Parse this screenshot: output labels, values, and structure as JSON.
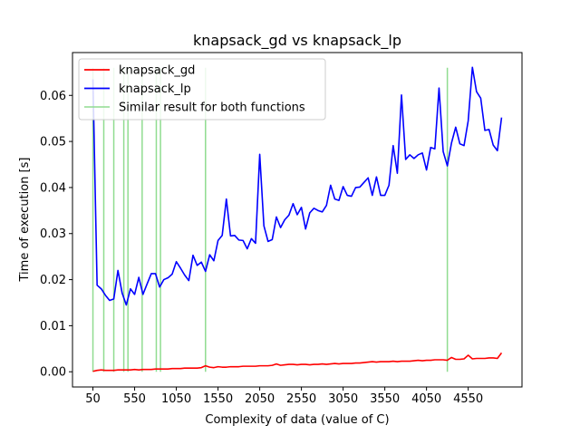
{
  "chart_data": {
    "type": "line",
    "title": "knapsack_gd vs knapsack_lp",
    "xlabel": "Complexity of data (value of C)",
    "ylabel": "Time of execution [s]",
    "xlim": [
      -195,
      5195
    ],
    "ylim": [
      -0.0033,
      0.0693
    ],
    "xticks": [
      50,
      550,
      1050,
      1550,
      2050,
      2550,
      3050,
      3550,
      4050,
      4550
    ],
    "yticks": [
      0.0,
      0.01,
      0.02,
      0.03,
      0.04,
      0.05,
      0.06
    ],
    "ytick_labels": [
      "0.00",
      "0.01",
      "0.02",
      "0.03",
      "0.04",
      "0.05",
      "0.06"
    ],
    "grid": false,
    "legend_position": "upper-left",
    "legend": [
      "knapsack_gd",
      "knapsack_lp",
      "Similar result for both functions"
    ],
    "series": [
      {
        "name": "knapsack_gd",
        "color": "#ff0000",
        "points": [
          [
            50,
            0.0001
          ],
          [
            100,
            0.0003
          ],
          [
            150,
            0.0004
          ],
          [
            200,
            0.0003
          ],
          [
            250,
            0.0003
          ],
          [
            300,
            0.0003
          ],
          [
            350,
            0.0004
          ],
          [
            400,
            0.0004
          ],
          [
            450,
            0.0004
          ],
          [
            500,
            0.0004
          ],
          [
            550,
            0.0005
          ],
          [
            600,
            0.0004
          ],
          [
            650,
            0.0005
          ],
          [
            700,
            0.0005
          ],
          [
            750,
            0.0005
          ],
          [
            800,
            0.0006
          ],
          [
            850,
            0.0006
          ],
          [
            900,
            0.0006
          ],
          [
            950,
            0.0006
          ],
          [
            1000,
            0.0007
          ],
          [
            1050,
            0.0007
          ],
          [
            1100,
            0.0007
          ],
          [
            1150,
            0.0008
          ],
          [
            1200,
            0.0008
          ],
          [
            1250,
            0.0008
          ],
          [
            1300,
            0.0008
          ],
          [
            1350,
            0.0009
          ],
          [
            1400,
            0.0013
          ],
          [
            1450,
            0.001
          ],
          [
            1500,
            0.0009
          ],
          [
            1550,
            0.0011
          ],
          [
            1600,
            0.001
          ],
          [
            1650,
            0.001
          ],
          [
            1700,
            0.0011
          ],
          [
            1750,
            0.0011
          ],
          [
            1800,
            0.0011
          ],
          [
            1850,
            0.0012
          ],
          [
            1900,
            0.0012
          ],
          [
            1950,
            0.0012
          ],
          [
            2000,
            0.0012
          ],
          [
            2050,
            0.0013
          ],
          [
            2100,
            0.0013
          ],
          [
            2150,
            0.0013
          ],
          [
            2200,
            0.0014
          ],
          [
            2250,
            0.0017
          ],
          [
            2300,
            0.0014
          ],
          [
            2350,
            0.0015
          ],
          [
            2400,
            0.0016
          ],
          [
            2450,
            0.0016
          ],
          [
            2500,
            0.0015
          ],
          [
            2550,
            0.0016
          ],
          [
            2600,
            0.0016
          ],
          [
            2650,
            0.0015
          ],
          [
            2700,
            0.0016
          ],
          [
            2750,
            0.0016
          ],
          [
            2800,
            0.0017
          ],
          [
            2850,
            0.0016
          ],
          [
            2900,
            0.0017
          ],
          [
            2950,
            0.0018
          ],
          [
            3000,
            0.0017
          ],
          [
            3050,
            0.0018
          ],
          [
            3100,
            0.0018
          ],
          [
            3150,
            0.0018
          ],
          [
            3200,
            0.0019
          ],
          [
            3250,
            0.0019
          ],
          [
            3300,
            0.002
          ],
          [
            3350,
            0.0021
          ],
          [
            3400,
            0.0022
          ],
          [
            3450,
            0.0021
          ],
          [
            3500,
            0.0022
          ],
          [
            3550,
            0.0022
          ],
          [
            3600,
            0.0022
          ],
          [
            3650,
            0.0023
          ],
          [
            3700,
            0.0022
          ],
          [
            3750,
            0.0023
          ],
          [
            3800,
            0.0023
          ],
          [
            3850,
            0.0023
          ],
          [
            3900,
            0.0024
          ],
          [
            3950,
            0.0025
          ],
          [
            4000,
            0.0024
          ],
          [
            4050,
            0.0025
          ],
          [
            4100,
            0.0025
          ],
          [
            4150,
            0.0026
          ],
          [
            4200,
            0.0026
          ],
          [
            4250,
            0.0026
          ],
          [
            4300,
            0.0025
          ],
          [
            4350,
            0.0031
          ],
          [
            4400,
            0.0027
          ],
          [
            4450,
            0.0027
          ],
          [
            4500,
            0.0028
          ],
          [
            4550,
            0.0036
          ],
          [
            4600,
            0.0028
          ],
          [
            4650,
            0.0029
          ],
          [
            4700,
            0.0029
          ],
          [
            4750,
            0.0029
          ],
          [
            4800,
            0.003
          ],
          [
            4850,
            0.003
          ],
          [
            4900,
            0.0029
          ],
          [
            4950,
            0.0041
          ]
        ]
      },
      {
        "name": "knapsack_lp",
        "color": "#0000ff",
        "points": [
          [
            50,
            0.0635
          ],
          [
            100,
            0.0188
          ],
          [
            150,
            0.018
          ],
          [
            200,
            0.0166
          ],
          [
            250,
            0.0155
          ],
          [
            300,
            0.0158
          ],
          [
            350,
            0.022
          ],
          [
            400,
            0.0171
          ],
          [
            450,
            0.0145
          ],
          [
            500,
            0.018
          ],
          [
            550,
            0.0168
          ],
          [
            600,
            0.0205
          ],
          [
            650,
            0.0168
          ],
          [
            700,
            0.0191
          ],
          [
            750,
            0.0213
          ],
          [
            800,
            0.0213
          ],
          [
            850,
            0.0184
          ],
          [
            900,
            0.02
          ],
          [
            950,
            0.0204
          ],
          [
            1000,
            0.0212
          ],
          [
            1050,
            0.0239
          ],
          [
            1100,
            0.0225
          ],
          [
            1150,
            0.021
          ],
          [
            1200,
            0.0198
          ],
          [
            1250,
            0.0253
          ],
          [
            1300,
            0.0231
          ],
          [
            1350,
            0.0238
          ],
          [
            1400,
            0.0218
          ],
          [
            1450,
            0.0254
          ],
          [
            1500,
            0.0241
          ],
          [
            1550,
            0.0285
          ],
          [
            1600,
            0.0296
          ],
          [
            1650,
            0.0375
          ],
          [
            1700,
            0.0295
          ],
          [
            1750,
            0.0296
          ],
          [
            1800,
            0.0286
          ],
          [
            1850,
            0.0285
          ],
          [
            1900,
            0.0267
          ],
          [
            1950,
            0.0289
          ],
          [
            2000,
            0.0279
          ],
          [
            2050,
            0.0472
          ],
          [
            2100,
            0.0317
          ],
          [
            2150,
            0.0283
          ],
          [
            2200,
            0.0287
          ],
          [
            2250,
            0.0336
          ],
          [
            2300,
            0.0313
          ],
          [
            2350,
            0.033
          ],
          [
            2400,
            0.034
          ],
          [
            2450,
            0.0365
          ],
          [
            2500,
            0.0341
          ],
          [
            2550,
            0.0357
          ],
          [
            2600,
            0.031
          ],
          [
            2650,
            0.0345
          ],
          [
            2700,
            0.0355
          ],
          [
            2750,
            0.035
          ],
          [
            2800,
            0.0347
          ],
          [
            2850,
            0.0361
          ],
          [
            2900,
            0.0405
          ],
          [
            2950,
            0.0375
          ],
          [
            3000,
            0.0372
          ],
          [
            3050,
            0.0402
          ],
          [
            3100,
            0.0383
          ],
          [
            3150,
            0.0381
          ],
          [
            3200,
            0.04
          ],
          [
            3250,
            0.0401
          ],
          [
            3300,
            0.0411
          ],
          [
            3350,
            0.0421
          ],
          [
            3400,
            0.0383
          ],
          [
            3450,
            0.0423
          ],
          [
            3500,
            0.0383
          ],
          [
            3550,
            0.0383
          ],
          [
            3600,
            0.0405
          ],
          [
            3650,
            0.0491
          ],
          [
            3700,
            0.0431
          ],
          [
            3750,
            0.0601
          ],
          [
            3800,
            0.0461
          ],
          [
            3850,
            0.0471
          ],
          [
            3900,
            0.0463
          ],
          [
            3950,
            0.0471
          ],
          [
            4000,
            0.0475
          ],
          [
            4050,
            0.0438
          ],
          [
            4100,
            0.0487
          ],
          [
            4150,
            0.0484
          ],
          [
            4200,
            0.0616
          ],
          [
            4250,
            0.0478
          ],
          [
            4300,
            0.0447
          ],
          [
            4350,
            0.0497
          ],
          [
            4400,
            0.0531
          ],
          [
            4450,
            0.0495
          ],
          [
            4500,
            0.0491
          ],
          [
            4550,
            0.0545
          ],
          [
            4600,
            0.0661
          ],
          [
            4650,
            0.0608
          ],
          [
            4700,
            0.0594
          ],
          [
            4750,
            0.0524
          ],
          [
            4800,
            0.0526
          ],
          [
            4850,
            0.0492
          ],
          [
            4900,
            0.048
          ],
          [
            4950,
            0.0552
          ]
        ]
      }
    ],
    "similar_result_markers": {
      "name": "Similar result for both functions",
      "color": "#90dc90",
      "x": [
        50,
        180,
        300,
        420,
        470,
        640,
        810,
        860,
        1400,
        4300
      ],
      "y_range": [
        0.0,
        0.066
      ]
    }
  }
}
